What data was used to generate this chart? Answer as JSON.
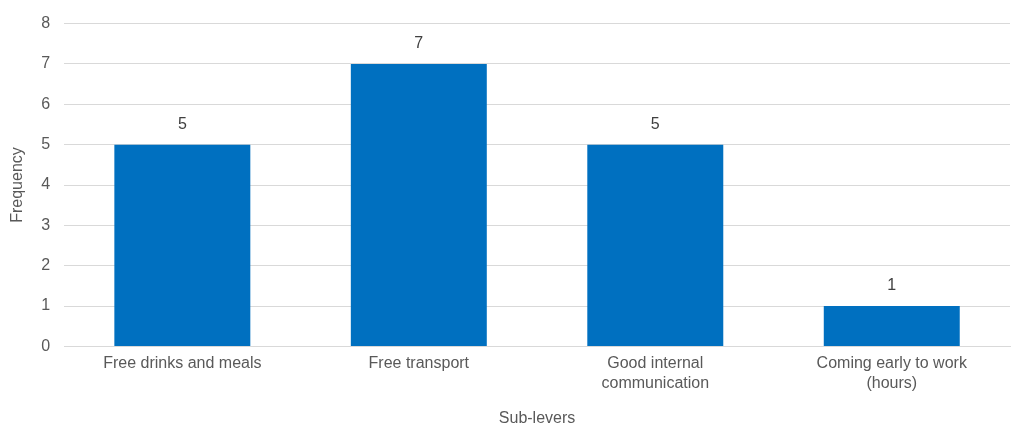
{
  "chart_data": {
    "type": "bar",
    "xlabel": "Sub-levers",
    "ylabel": "Frequency",
    "categories": [
      "Free drinks and meals",
      "Free transport",
      "Good internal communication",
      "Coming early to work (hours)"
    ],
    "values": [
      5,
      7,
      5,
      1
    ],
    "color": "#0070c0",
    "ylim": [
      0,
      8
    ],
    "yticks": [
      0,
      1,
      2,
      3,
      4,
      5,
      6,
      7,
      8
    ],
    "grid": "y",
    "data_labels": true,
    "legend": false
  }
}
